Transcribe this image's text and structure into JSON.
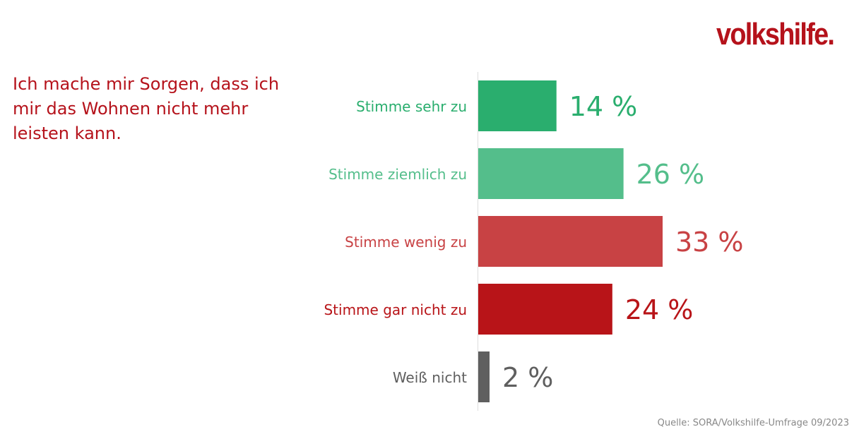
{
  "logo": {
    "text": "volkshilfe.",
    "color": "#b5121b"
  },
  "question": "Ich mache mir Sorgen, dass ich mir das Wohnen nicht mehr leisten kann.",
  "source": "Quelle: SORA/Volkshilfe-Umfrage 09/2023",
  "chart_data": {
    "type": "bar",
    "orientation": "horizontal",
    "title": "",
    "xlabel": "",
    "ylabel": "",
    "unit": "%",
    "grid": false,
    "legend": "none",
    "xlim": [
      0,
      33
    ],
    "categories": [
      "Stimme sehr zu",
      "Stimme ziemlich zu",
      "Stimme wenig zu",
      "Stimme gar nicht zu",
      "Weiß nicht"
    ],
    "values": [
      14,
      26,
      33,
      24,
      2
    ],
    "value_labels": [
      "14 %",
      "26 %",
      "33 %",
      "24 %",
      "2 %"
    ],
    "colors": [
      "#2aae6e",
      "#54be8b",
      "#c84244",
      "#b81418",
      "#5f5f5f"
    ]
  }
}
